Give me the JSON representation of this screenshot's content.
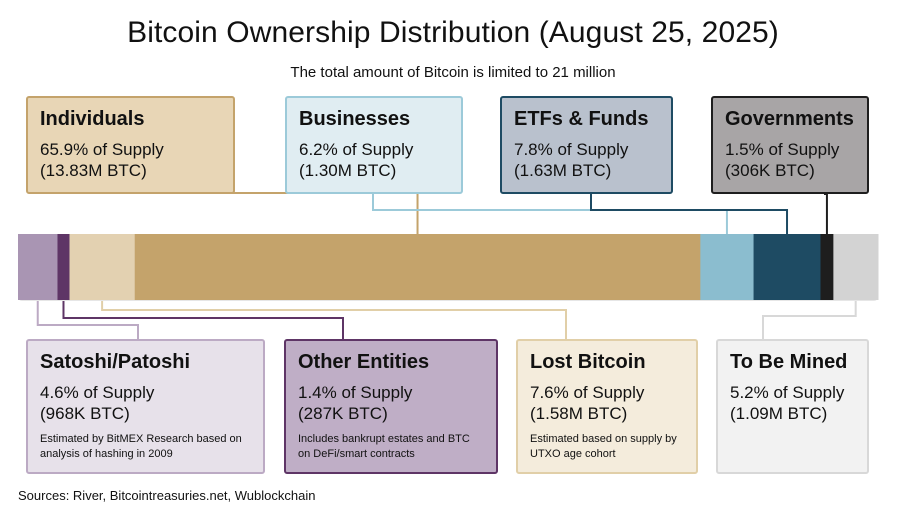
{
  "title": "Bitcoin Ownership Distribution (August 25, 2025)",
  "subtitle": "The total amount of Bitcoin is limited to 21 million",
  "source": "Sources: River, Bitcointreasuries.net, Wublockchain",
  "chart_data": {
    "type": "stacked-bar",
    "total_supply": "21 million",
    "segments": [
      {
        "name": "Satoshi/Patoshi",
        "percent": 4.6,
        "pct_label": "4.6% of Supply",
        "btc_label": "(968K BTC)",
        "note": "Estimated by BitMEX Research based on analysis of hashing in 2009",
        "color": "#a995b3",
        "box_fill": "#e7e1ea",
        "box_border": "#bcaac4"
      },
      {
        "name": "Other Entities",
        "percent": 1.4,
        "pct_label": "1.4% of Supply",
        "btc_label": "(287K BTC)",
        "note": "Includes bankrupt estates and BTC on DeFi/smart contracts",
        "color": "#5e3566",
        "box_fill": "#bfaec6",
        "box_border": "#5e3566"
      },
      {
        "name": "Lost Bitcoin",
        "percent": 7.6,
        "pct_label": "7.6% of Supply",
        "btc_label": "(1.58M BTC)",
        "note": "Estimated based on supply by UTXO age cohort",
        "color": "#e3d1b1",
        "box_fill": "#f4ecdc",
        "box_border": "#e1cfa8"
      },
      {
        "name": "Individuals",
        "percent": 65.9,
        "pct_label": "65.9% of Supply",
        "btc_label": "(13.83M BTC)",
        "note": "",
        "color": "#c4a36b",
        "box_fill": "#e8d6b6",
        "box_border": "#c4a36b"
      },
      {
        "name": "Businesses",
        "percent": 6.2,
        "pct_label": "6.2% of Supply",
        "btc_label": "(1.30M BTC)",
        "note": "",
        "color": "#8bbdcf",
        "box_fill": "#e0edf2",
        "box_border": "#9ccad9"
      },
      {
        "name": "ETFs & Funds",
        "percent": 7.8,
        "pct_label": "7.8% of Supply",
        "btc_label": "(1.63M BTC)",
        "note": "",
        "color": "#1e4b63",
        "box_fill": "#b9c1cd",
        "box_border": "#1e4b63"
      },
      {
        "name": "Governments",
        "percent": 1.5,
        "pct_label": "1.5% of Supply",
        "btc_label": "(306K BTC)",
        "note": "",
        "color": "#1e1e1e",
        "box_fill": "#a8a5a6",
        "box_border": "#1e1e1e"
      },
      {
        "name": "To Be Mined",
        "percent": 5.2,
        "pct_label": "5.2% of Supply",
        "btc_label": "(1.09M BTC)",
        "note": "",
        "color": "#d3d3d3",
        "box_fill": "#f2f2f2",
        "box_border": "#d8d8d8"
      }
    ]
  }
}
